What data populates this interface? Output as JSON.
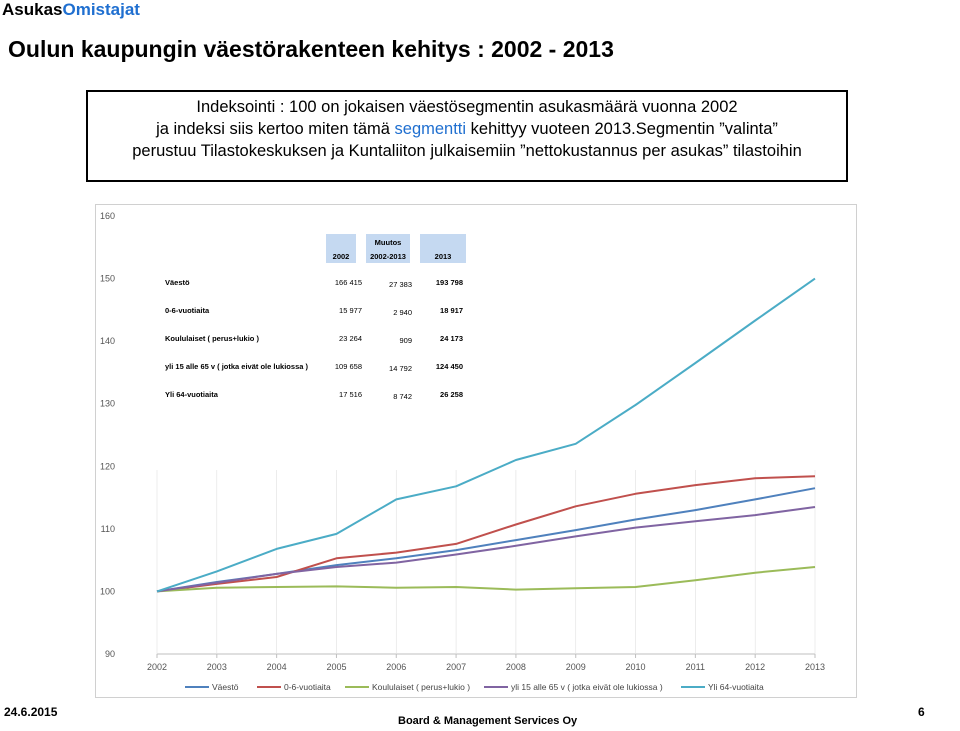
{
  "brand": {
    "part1": "Asukas",
    "part2": "Omistajat"
  },
  "title": "Oulun kaupungin väestörakenteen kehitys : 2002 - 2013",
  "info": {
    "line1": "Indeksointi : 100 on jokaisen väestösegmentin asukasmäärä vuonna 2002",
    "line2_a": "ja indeksi siis kertoo miten tämä ",
    "line2_hl": "segmentti",
    "line2_b": " kehittyy vuoteen 2013.Segmentin ”valinta”",
    "line3": "perustuu Tilastokeskuksen ja Kuntaliiton julkaisemiin ”nettokustannus per asukas” tilastoihin"
  },
  "table": {
    "headers": {
      "y2002": "2002",
      "muutos1": "Muutos",
      "muutos2": "2002-2013",
      "y2013": "2013"
    },
    "header_color": "#c5d9f1",
    "rows": [
      {
        "label": "Väestö",
        "v2002": "166 415",
        "change": "27 383",
        "v2013": "193 798"
      },
      {
        "label": "0-6-vuotiaita",
        "v2002": "15 977",
        "change": "2 940",
        "v2013": "18 917"
      },
      {
        "label": "Koululaiset ( perus+lukio )",
        "v2002": "23 264",
        "change": "909",
        "v2013": "24 173"
      },
      {
        "label": "yli 15 alle 65 v ( jotka eivät ole lukiossa )",
        "v2002": "109 658",
        "change": "14 792",
        "v2013": "124 450"
      },
      {
        "label": "Yli 64-vuotiaita",
        "v2002": "17 516",
        "change": "8 742",
        "v2013": "26 258"
      }
    ]
  },
  "chart_data": {
    "type": "line",
    "categories": [
      "2002",
      "2003",
      "2004",
      "2005",
      "2006",
      "2007",
      "2008",
      "2009",
      "2010",
      "2011",
      "2012",
      "2013"
    ],
    "ylim": [
      90,
      160
    ],
    "yticks": [
      90,
      100,
      110,
      120,
      130,
      140,
      150,
      160
    ],
    "grid": false,
    "legend_position": "bottom",
    "series": [
      {
        "name": "Väestö",
        "color": "#4f81bd",
        "values": [
          100,
          101.5,
          102.8,
          104.2,
          105.3,
          106.6,
          108.2,
          109.8,
          111.5,
          113.0,
          114.7,
          116.5
        ]
      },
      {
        "name": "0-6-vuotiaita",
        "color": "#c0504d",
        "values": [
          100,
          101.2,
          102.3,
          105.3,
          106.2,
          107.6,
          110.7,
          113.6,
          115.6,
          117.0,
          118.1,
          118.4
        ]
      },
      {
        "name": "Koululaiset ( perus+lukio )",
        "color": "#9bbb59",
        "values": [
          100,
          100.6,
          100.7,
          100.8,
          100.6,
          100.7,
          100.3,
          100.5,
          100.7,
          101.8,
          103.0,
          103.9
        ]
      },
      {
        "name": "yli 15 alle 65 v ( jotka eivät ole lukiossa )",
        "color": "#8064a2",
        "values": [
          100,
          101.4,
          102.8,
          103.9,
          104.6,
          105.9,
          107.3,
          108.8,
          110.2,
          111.2,
          112.2,
          113.5
        ]
      },
      {
        "name": "Yli 64-vuotiaita",
        "color": "#4bacc6",
        "values": [
          100,
          103.2,
          106.8,
          109.2,
          114.7,
          116.8,
          121.0,
          123.6,
          129.8,
          136.5,
          143.3,
          150.0
        ]
      }
    ]
  },
  "footer": {
    "date": "24.6.2015",
    "company": "Board & Management Services Oy",
    "page": "6"
  }
}
